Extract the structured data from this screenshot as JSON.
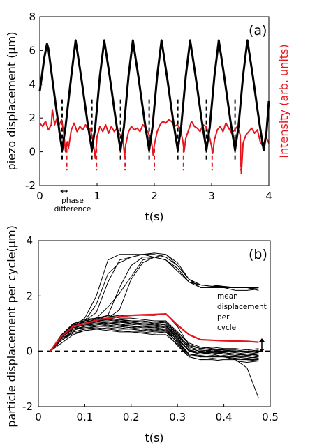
{
  "chart_data": [
    {
      "panel": "(a)",
      "type": "line",
      "xlabel": "t(s)",
      "ylabel": "piezo displacement (μm)",
      "ylabel_right": "Intensity (arb. units)",
      "xlim": [
        0,
        4
      ],
      "ylim": [
        -2,
        8
      ],
      "xticks": [
        "0",
        "1",
        "2",
        "3",
        "4"
      ],
      "yticks": [
        "-2",
        "0",
        "2",
        "4",
        "6",
        "8"
      ],
      "colors": {
        "piezo": "#000000",
        "intensity": "#e8141c"
      },
      "annotation": {
        "arrow": "↔",
        "text_line1": "phase",
        "text_line2": "difference"
      },
      "piezo_series": {
        "x": [
          0.0,
          0.08,
          0.125,
          0.15,
          0.25,
          0.35,
          0.39,
          0.45,
          0.55,
          0.625,
          0.72,
          0.83,
          0.91,
          0.97,
          1.05,
          1.125,
          1.22,
          1.33,
          1.41,
          1.47,
          1.55,
          1.625,
          1.72,
          1.83,
          1.91,
          1.97,
          2.05,
          2.125,
          2.22,
          2.33,
          2.41,
          2.47,
          2.55,
          2.625,
          2.72,
          2.83,
          2.91,
          2.97,
          3.05,
          3.125,
          3.22,
          3.33,
          3.41,
          3.47,
          3.55,
          3.625,
          3.72,
          3.83,
          3.91,
          3.96,
          4.0
        ],
        "y": [
          3.6,
          5.6,
          6.4,
          6.1,
          3.5,
          1.0,
          0.1,
          1.5,
          4.5,
          6.6,
          4.5,
          1.8,
          0.1,
          1.5,
          4.5,
          6.6,
          4.5,
          1.8,
          0.1,
          1.5,
          4.5,
          6.6,
          4.5,
          1.8,
          0.1,
          1.5,
          4.5,
          6.6,
          4.5,
          1.8,
          0.1,
          1.5,
          4.5,
          6.6,
          4.5,
          1.8,
          0.1,
          1.5,
          4.5,
          6.6,
          4.5,
          1.8,
          0.1,
          1.5,
          4.5,
          6.6,
          4.5,
          1.8,
          0.1,
          1.2,
          3.0
        ]
      },
      "intensity_series": {
        "x": [
          0.0,
          0.05,
          0.1,
          0.15,
          0.2,
          0.22,
          0.26,
          0.3,
          0.34,
          0.38,
          0.42,
          0.45,
          0.48,
          0.5,
          0.55,
          0.6,
          0.65,
          0.7,
          0.75,
          0.8,
          0.84,
          0.88,
          0.92,
          0.95,
          0.97,
          1.0,
          1.05,
          1.1,
          1.15,
          1.2,
          1.25,
          1.3,
          1.35,
          1.4,
          1.45,
          1.48,
          1.5,
          1.55,
          1.6,
          1.65,
          1.7,
          1.75,
          1.8,
          1.85,
          1.9,
          1.95,
          1.98,
          2.0,
          2.05,
          2.1,
          2.15,
          2.2,
          2.25,
          2.3,
          2.35,
          2.4,
          2.45,
          2.5,
          2.52,
          2.55,
          2.6,
          2.65,
          2.7,
          2.75,
          2.8,
          2.85,
          2.9,
          2.95,
          3.0,
          3.02,
          3.05,
          3.1,
          3.15,
          3.2,
          3.25,
          3.3,
          3.35,
          3.4,
          3.45,
          3.5,
          3.52,
          3.55,
          3.6,
          3.65,
          3.7,
          3.75,
          3.8,
          3.85,
          3.9,
          3.95,
          4.0
        ],
        "y": [
          1.7,
          1.5,
          1.8,
          1.3,
          1.6,
          2.5,
          1.6,
          2.0,
          1.6,
          1.9,
          1.1,
          0.0,
          0.6,
          0.2,
          1.3,
          1.7,
          1.2,
          1.5,
          1.3,
          1.6,
          1.3,
          1.4,
          0.8,
          0.1,
          -0.4,
          0.9,
          1.5,
          1.2,
          1.6,
          1.1,
          1.5,
          1.2,
          1.4,
          1.0,
          0.9,
          -0.3,
          0.4,
          1.2,
          1.5,
          1.3,
          1.4,
          1.2,
          1.6,
          1.4,
          1.1,
          0.6,
          -0.2,
          0.4,
          1.2,
          1.6,
          1.8,
          1.7,
          1.9,
          1.8,
          1.5,
          1.6,
          1.4,
          0.6,
          0.0,
          0.8,
          1.3,
          1.8,
          1.5,
          1.4,
          1.2,
          1.6,
          1.5,
          1.1,
          0.3,
          -0.1,
          0.7,
          1.3,
          1.5,
          1.2,
          1.7,
          1.4,
          1.1,
          1.3,
          1.5,
          1.0,
          -1.3,
          0.5,
          1.0,
          1.2,
          1.4,
          1.1,
          1.3,
          0.6,
          0.3,
          0.9,
          0.5
        ]
      },
      "black_dashed_x": [
        0.39,
        0.91,
        1.41,
        1.91,
        2.41,
        2.91,
        3.41
      ],
      "red_dashed_x": [
        0.47,
        0.99,
        1.49,
        2.0,
        2.51,
        3.01,
        3.5
      ]
    },
    {
      "panel": "(b)",
      "type": "line",
      "xlabel": "t(s)",
      "ylabel": "particle displacement per cycle(μm)",
      "xlim": [
        0,
        0.5
      ],
      "ylim": [
        -2,
        4
      ],
      "xticks": [
        "0",
        "0.1",
        "0.2",
        "0.3",
        "0.4",
        "0.5"
      ],
      "yticks": [
        "-2",
        "0",
        "2",
        "4"
      ],
      "colors": {
        "traces": "#000000",
        "mean": "#e8141c"
      },
      "annotation": {
        "line1": "mean",
        "line2": "displacement",
        "line3": "per",
        "line4": "cycle"
      },
      "x": [
        0.025,
        0.05,
        0.075,
        0.1,
        0.125,
        0.15,
        0.175,
        0.2,
        0.225,
        0.25,
        0.275,
        0.3,
        0.325,
        0.35,
        0.375,
        0.4,
        0.425,
        0.45,
        0.475
      ],
      "mean": [
        0.0,
        0.55,
        0.9,
        1.0,
        1.12,
        1.2,
        1.25,
        1.3,
        1.32,
        1.33,
        1.35,
        0.95,
        0.6,
        0.42,
        0.4,
        0.38,
        0.37,
        0.36,
        0.33
      ],
      "upper_traces": [
        [
          0.0,
          0.5,
          0.9,
          1.2,
          2.0,
          3.3,
          3.5,
          3.5,
          3.5,
          3.4,
          3.3,
          3.0,
          2.5,
          2.4,
          2.4,
          2.35,
          2.3,
          2.3,
          2.3
        ],
        [
          0.0,
          0.6,
          1.0,
          1.1,
          1.7,
          2.8,
          3.2,
          3.4,
          3.5,
          3.55,
          3.5,
          3.2,
          2.6,
          2.4,
          2.35,
          2.35,
          2.3,
          2.3,
          2.25
        ],
        [
          0.0,
          0.5,
          0.9,
          1.0,
          1.1,
          1.3,
          2.3,
          3.1,
          3.4,
          3.4,
          3.3,
          3.0,
          2.5,
          2.3,
          2.3,
          2.3,
          2.2,
          2.2,
          2.25
        ],
        [
          0.0,
          0.6,
          0.9,
          1.0,
          1.2,
          1.6,
          2.1,
          2.7,
          3.3,
          3.4,
          3.5,
          3.1,
          2.6,
          2.3,
          2.3,
          2.3,
          2.3,
          2.3,
          2.3
        ],
        [
          0.0,
          0.5,
          0.8,
          1.0,
          1.1,
          1.2,
          1.5,
          2.6,
          3.2,
          3.4,
          3.3,
          2.9,
          2.5,
          2.4,
          2.35,
          2.3,
          2.3,
          2.3,
          2.2
        ],
        [
          0.0,
          0.5,
          0.9,
          1.1,
          1.4,
          2.5,
          3.3,
          3.4,
          3.5,
          3.5,
          3.4,
          3.1,
          2.6,
          2.4,
          2.4,
          2.3,
          2.3,
          2.3,
          2.3
        ]
      ],
      "lower_traces": [
        [
          0.0,
          0.5,
          0.8,
          0.9,
          1.0,
          1.0,
          1.05,
          1.0,
          1.0,
          0.95,
          0.9,
          0.5,
          0.0,
          -0.05,
          0.0,
          -0.05,
          -0.1,
          -0.1,
          -0.15
        ],
        [
          0.0,
          0.6,
          1.0,
          1.1,
          1.2,
          1.25,
          1.3,
          1.3,
          1.3,
          1.3,
          1.35,
          0.9,
          0.2,
          0.1,
          0.15,
          0.1,
          0.1,
          0.05,
          0.1
        ],
        [
          0.0,
          0.4,
          0.7,
          0.8,
          0.9,
          0.95,
          0.9,
          0.85,
          0.8,
          0.75,
          0.8,
          0.4,
          -0.1,
          -0.2,
          -0.15,
          -0.2,
          -0.2,
          -0.25,
          -0.2
        ],
        [
          0.0,
          0.6,
          0.9,
          1.0,
          1.1,
          1.1,
          1.15,
          1.1,
          1.1,
          1.0,
          1.05,
          0.6,
          0.1,
          0.0,
          0.05,
          0.0,
          -0.05,
          -0.1,
          -0.05
        ],
        [
          0.0,
          0.3,
          0.6,
          0.75,
          0.8,
          0.85,
          0.8,
          0.8,
          0.75,
          0.7,
          0.7,
          0.2,
          -0.2,
          -0.3,
          -0.25,
          -0.3,
          -0.3,
          -0.3,
          -0.35
        ],
        [
          0.0,
          0.5,
          0.9,
          1.1,
          1.2,
          1.15,
          1.1,
          1.05,
          1.0,
          0.95,
          0.9,
          0.6,
          0.2,
          0.1,
          0.05,
          0.05,
          0.0,
          0.0,
          -0.05
        ],
        [
          0.0,
          0.55,
          0.95,
          1.05,
          1.1,
          1.0,
          0.95,
          0.95,
          1.0,
          1.0,
          0.95,
          0.5,
          0.0,
          -0.1,
          -0.1,
          -0.05,
          -0.1,
          -0.15,
          -0.1
        ],
        [
          0.0,
          0.45,
          0.75,
          0.9,
          0.95,
          1.0,
          1.0,
          0.9,
          0.85,
          0.85,
          0.8,
          0.3,
          -0.1,
          -0.15,
          -0.2,
          -0.2,
          -0.25,
          -0.3,
          -0.3
        ],
        [
          0.0,
          0.6,
          1.0,
          1.15,
          1.2,
          1.3,
          1.2,
          1.2,
          1.15,
          1.1,
          1.1,
          0.7,
          0.3,
          0.15,
          0.1,
          0.05,
          0.05,
          0.0,
          0.0
        ],
        [
          0.0,
          0.5,
          0.85,
          0.95,
          1.0,
          0.95,
          0.9,
          0.85,
          0.9,
          0.9,
          0.85,
          0.4,
          0.05,
          -0.05,
          -0.1,
          -0.2,
          -0.3,
          -0.6,
          -1.7
        ],
        [
          0.0,
          0.45,
          0.7,
          0.8,
          0.85,
          0.8,
          0.75,
          0.7,
          0.7,
          0.65,
          0.7,
          0.35,
          -0.1,
          -0.2,
          -0.2,
          -0.2,
          -0.25,
          -0.3,
          -0.3
        ],
        [
          0.0,
          0.55,
          0.9,
          1.0,
          1.05,
          1.05,
          1.1,
          1.0,
          0.95,
          0.95,
          1.0,
          0.55,
          0.1,
          0.0,
          -0.05,
          -0.05,
          -0.1,
          -0.1,
          -0.1
        ],
        [
          0.0,
          0.5,
          0.8,
          0.85,
          0.9,
          0.9,
          0.85,
          0.8,
          0.75,
          0.8,
          0.75,
          0.3,
          -0.15,
          -0.2,
          -0.2,
          -0.15,
          -0.2,
          -0.2,
          -0.25
        ],
        [
          0.0,
          0.6,
          0.95,
          1.05,
          1.15,
          1.2,
          1.15,
          1.1,
          1.1,
          1.05,
          1.05,
          0.65,
          0.15,
          0.05,
          0.0,
          0.0,
          0.0,
          -0.05,
          0.0
        ],
        [
          0.0,
          0.4,
          0.65,
          0.75,
          0.8,
          0.75,
          0.7,
          0.7,
          0.65,
          0.6,
          0.6,
          0.25,
          -0.2,
          -0.3,
          -0.3,
          -0.35,
          -0.35,
          -0.4,
          -0.35
        ],
        [
          0.0,
          0.55,
          0.9,
          1.0,
          1.0,
          1.05,
          1.05,
          1.05,
          1.0,
          1.0,
          0.95,
          0.45,
          0.0,
          -0.1,
          -0.05,
          -0.1,
          -0.15,
          -0.1,
          -0.15
        ],
        [
          0.0,
          0.5,
          0.85,
          0.95,
          1.0,
          1.0,
          0.95,
          0.9,
          0.9,
          0.85,
          0.9,
          0.45,
          0.05,
          -0.05,
          -0.05,
          -0.1,
          -0.1,
          -0.15,
          -0.2
        ],
        [
          0.0,
          0.6,
          1.0,
          1.1,
          1.1,
          1.15,
          1.1,
          1.1,
          1.05,
          1.05,
          1.1,
          0.7,
          0.25,
          0.1,
          0.05,
          0.05,
          0.0,
          0.0,
          0.05
        ]
      ]
    }
  ]
}
